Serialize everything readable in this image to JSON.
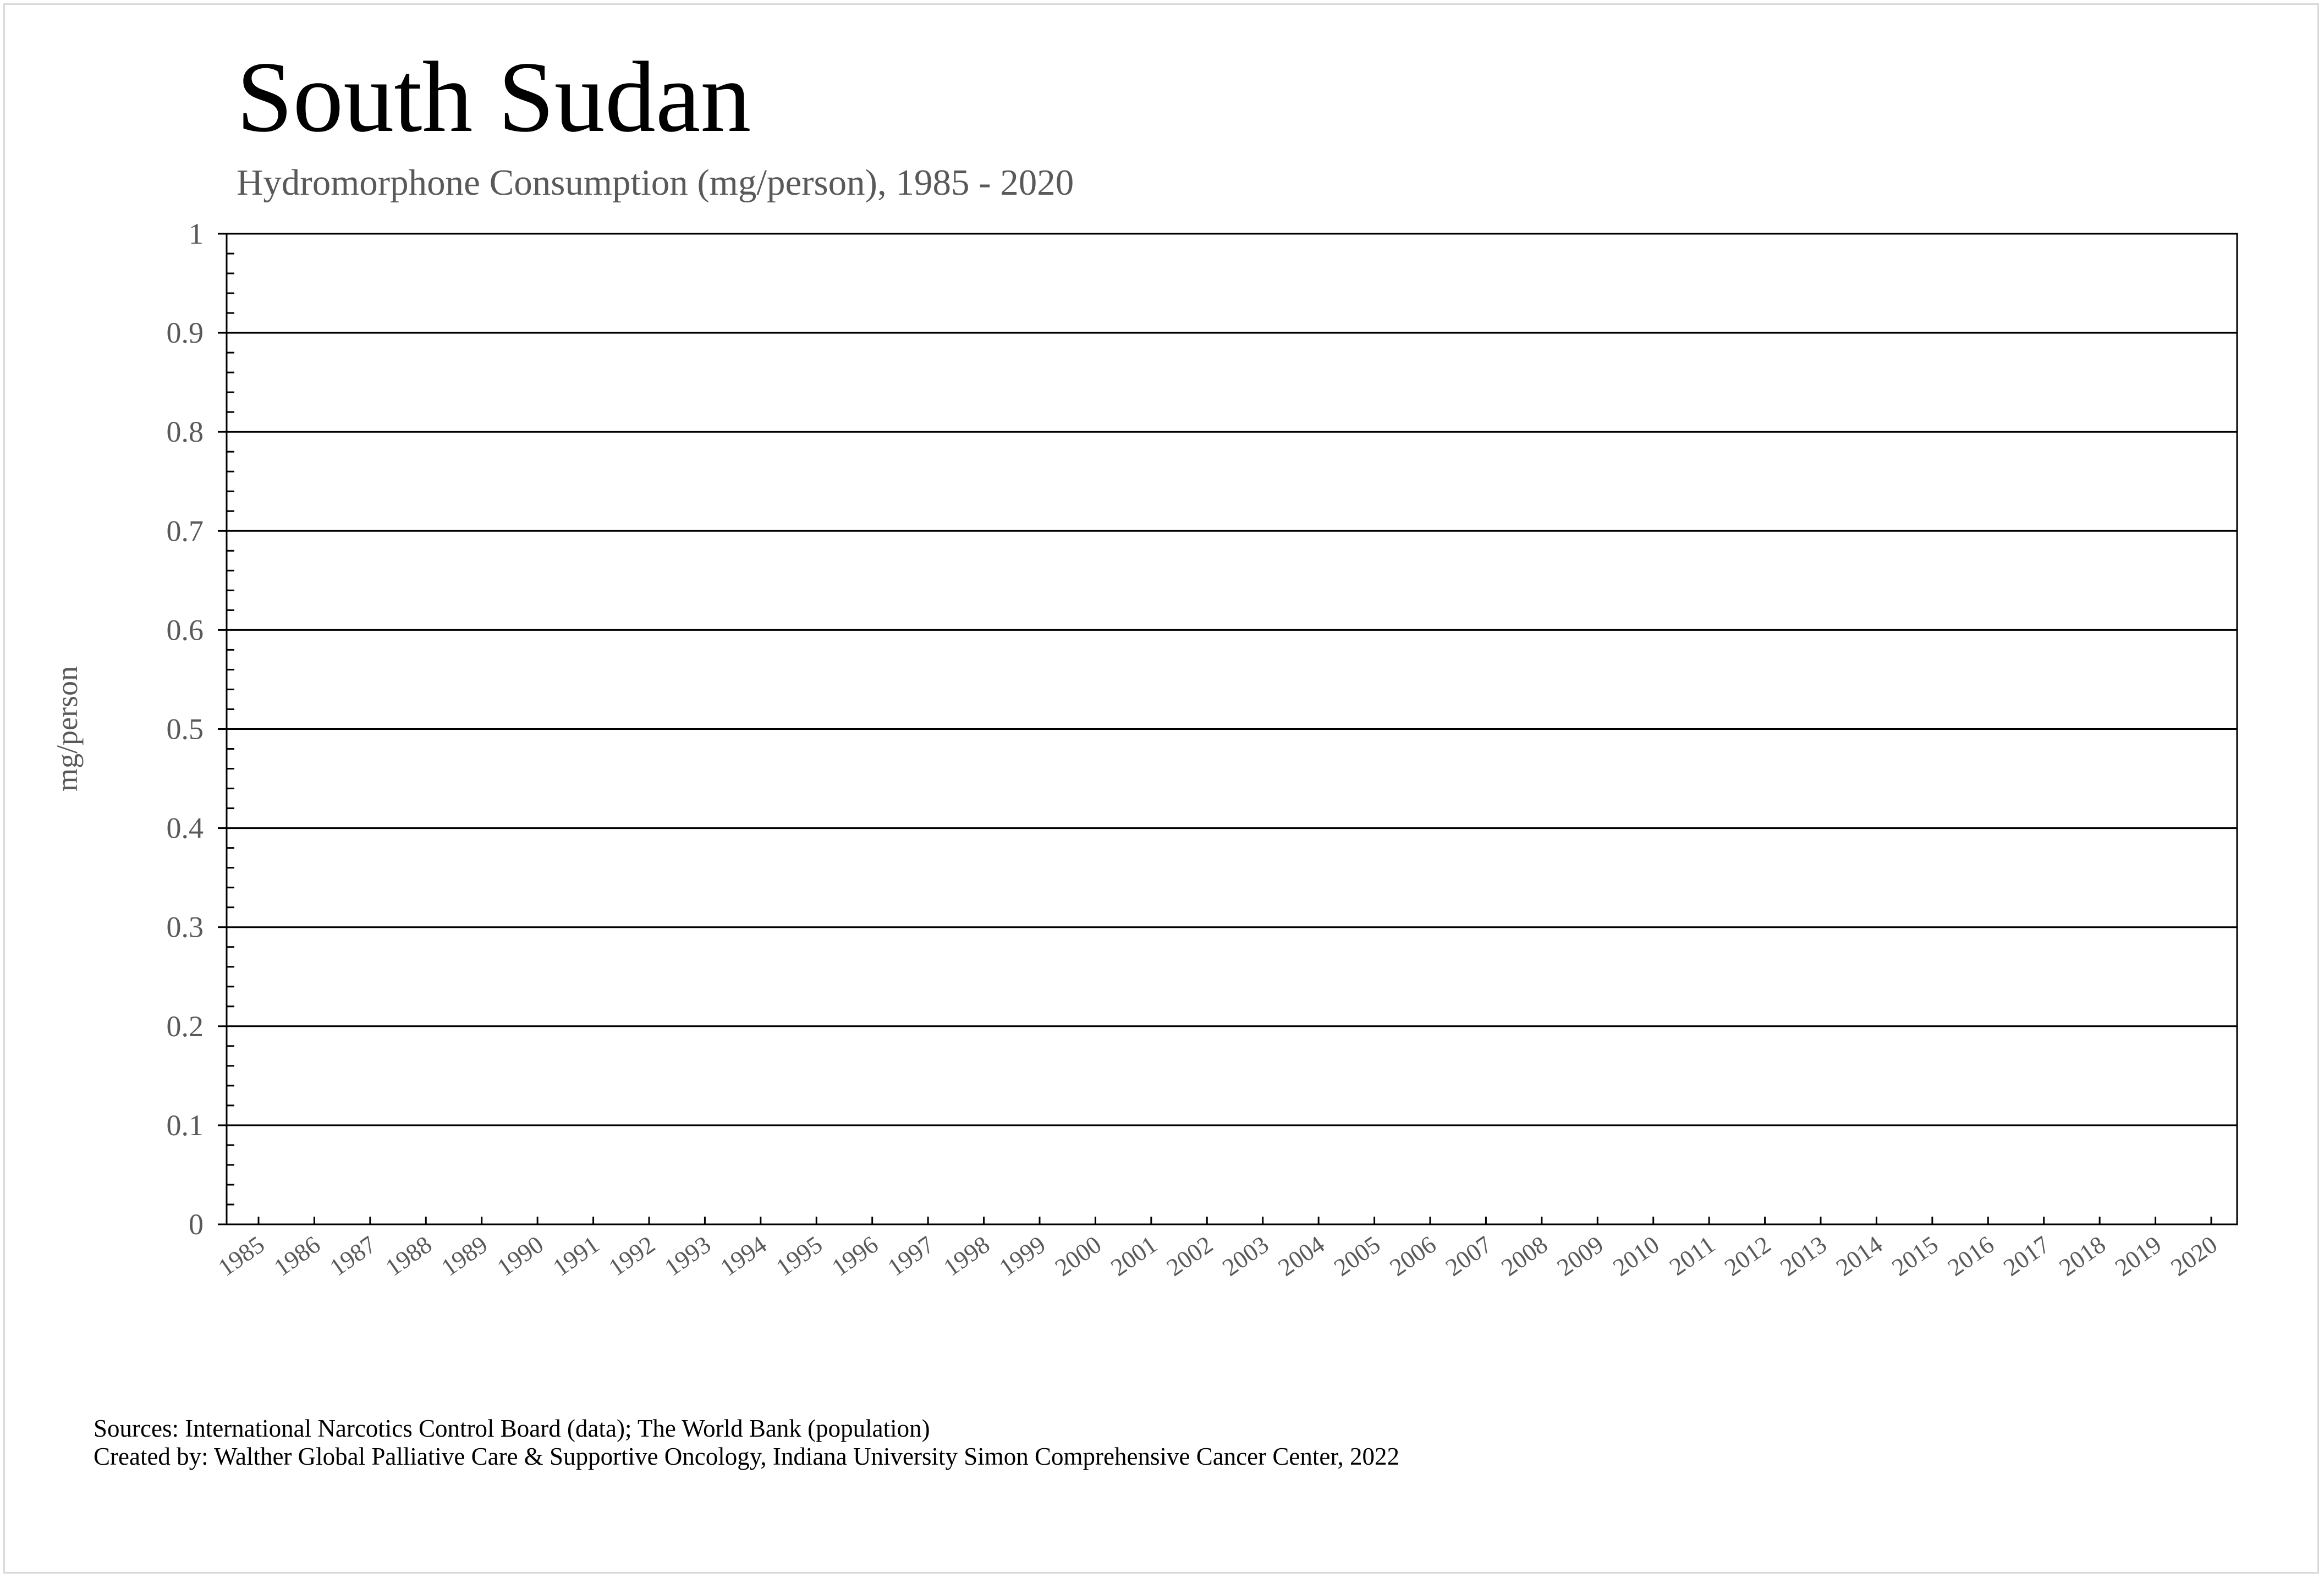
{
  "chart_data": {
    "type": "line",
    "title": "South Sudan",
    "subtitle": "Hydromorphone Consumption (mg/person), 1985 - 2020",
    "xlabel": "",
    "ylabel": "mg/person",
    "ylim": [
      0,
      1
    ],
    "yticks": [
      "0",
      "0.1",
      "0.2",
      "0.3",
      "0.4",
      "0.5",
      "0.6",
      "0.7",
      "0.8",
      "0.9",
      "1"
    ],
    "categories": [
      "1985",
      "1986",
      "1987",
      "1988",
      "1989",
      "1990",
      "1991",
      "1992",
      "1993",
      "1994",
      "1995",
      "1996",
      "1997",
      "1998",
      "1999",
      "2000",
      "2001",
      "2002",
      "2003",
      "2004",
      "2005",
      "2006",
      "2007",
      "2008",
      "2009",
      "2010",
      "2011",
      "2012",
      "2013",
      "2014",
      "2015",
      "2016",
      "2017",
      "2018",
      "2019",
      "2020"
    ],
    "series": [],
    "grid": true,
    "legend": "none"
  },
  "footer": {
    "sources": "Sources: International Narcotics Control Board (data); The World Bank (population)",
    "created_by": "Created by: Walther Global Palliative Care & Supportive Oncology, Indiana University Simon Comprehensive Cancer Center, 2022"
  },
  "colors": {
    "axis": "#000000",
    "grid": "#000000",
    "text_muted": "#595959",
    "frame": "#d9d9d9"
  }
}
